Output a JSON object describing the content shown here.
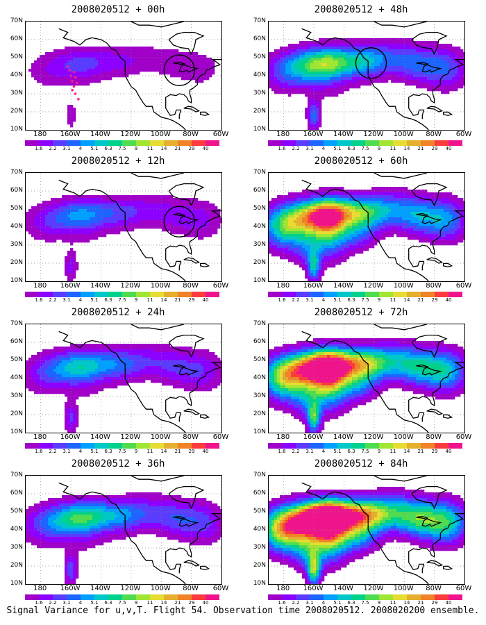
{
  "panels": [
    {
      "title": "2008020512 + 00h",
      "intensity": 0.35,
      "circle": true,
      "track": true
    },
    {
      "title": "2008020512 + 12h",
      "intensity": 0.55,
      "circle": true,
      "track": false
    },
    {
      "title": "2008020512 + 24h",
      "intensity": 0.7,
      "circle": false,
      "track": false
    },
    {
      "title": "2008020512 + 36h",
      "intensity": 0.85,
      "circle": false,
      "track": false
    },
    {
      "title": "2008020512 + 48h",
      "intensity": 1.0,
      "circle": true,
      "track": false
    },
    {
      "title": "2008020512 + 60h",
      "intensity": 1.3,
      "circle": false,
      "track": false
    },
    {
      "title": "2008020512 + 72h",
      "intensity": 1.6,
      "circle": false,
      "track": false
    },
    {
      "title": "2008020512 + 84h",
      "intensity": 1.9,
      "circle": false,
      "track": false
    }
  ],
  "lat_labels": [
    "70N",
    "60N",
    "50N",
    "40N",
    "30N",
    "20N",
    "10N"
  ],
  "lon_labels": [
    "180",
    "160W",
    "140W",
    "120W",
    "100W",
    "80W",
    "60W"
  ],
  "colorbar_labels": [
    "1.6",
    "2.2",
    "3.1",
    "4",
    "5.1",
    "6.3",
    "7.5",
    "9",
    "11",
    "14",
    "21",
    "29",
    "40"
  ],
  "colorbar_colors": [
    "#a000c8",
    "#8c00ff",
    "#5a3cff",
    "#1e64ff",
    "#00a0ff",
    "#00c8c8",
    "#00d28c",
    "#50dc50",
    "#a0e632",
    "#e6dc32",
    "#e6af2d",
    "#f08228",
    "#fa3c3c",
    "#f0148c"
  ],
  "caption": "Signal Variance for u,v,T. Flight 54. Observation time 2008020512. 2008020200 ensemble."
}
